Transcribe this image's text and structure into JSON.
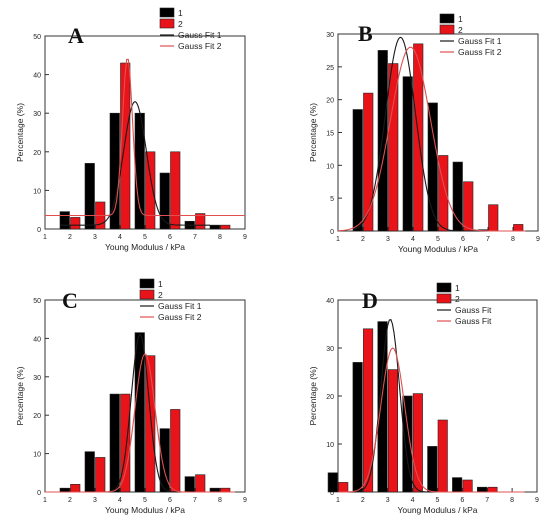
{
  "chart_data": [
    {
      "panel_label": "A",
      "type": "bar",
      "xlabel": "Young Modulus / kPa",
      "ylabel": "Percentage (%)",
      "xlim": [
        1,
        9
      ],
      "ylim": [
        0,
        50
      ],
      "xticks": [
        1,
        2,
        3,
        4,
        5,
        6,
        7,
        8,
        9
      ],
      "yticks": [
        0,
        10,
        20,
        30,
        40,
        50
      ],
      "legend_position": "top-right",
      "legend": [
        "1",
        "2",
        "Gauss Fit 1",
        "Gauss Fit 2"
      ],
      "series": [
        {
          "name": "1",
          "color": "#000000",
          "x": [
            2,
            3,
            4,
            5,
            6,
            7,
            8
          ],
          "values": [
            4.5,
            17,
            30,
            30,
            14.5,
            2,
            1
          ]
        },
        {
          "name": "2",
          "color": "#e8141a",
          "x": [
            2,
            3,
            4,
            5,
            6,
            7,
            8
          ],
          "values": [
            3,
            7,
            43,
            20,
            20,
            4,
            1
          ]
        }
      ],
      "fits": [
        {
          "name": "Gauss Fit 1",
          "color": "#1a1a1a",
          "y0": 1,
          "A": 32,
          "xc": 4.6,
          "w": 0.9,
          "xrange": [
            1.6,
            7.6
          ]
        },
        {
          "name": "Gauss Fit 2",
          "color": "#e05050",
          "y0": 3.5,
          "A": 41,
          "xc": 4.3,
          "w": 0.4,
          "xrange": [
            1.0,
            9.0
          ]
        }
      ]
    },
    {
      "panel_label": "B",
      "type": "bar",
      "xlabel": "Young Modulus / kPa",
      "ylabel": "Percentage (%)",
      "xlim": [
        1,
        9
      ],
      "ylim": [
        0,
        30
      ],
      "xticks": [
        1,
        2,
        3,
        4,
        5,
        6,
        7,
        8,
        9
      ],
      "yticks": [
        0,
        5,
        10,
        15,
        20,
        25,
        30
      ],
      "legend_position": "top-right",
      "legend": [
        "1",
        "2",
        "Gauss Fit 1",
        "Gauss Fit 2"
      ],
      "series": [
        {
          "name": "1",
          "color": "#000000",
          "x": [
            2,
            3,
            4,
            5,
            6,
            7,
            8
          ],
          "values": [
            18.5,
            27.5,
            23.5,
            19.5,
            10.5,
            0.2,
            0
          ]
        },
        {
          "name": "2",
          "color": "#e8141a",
          "x": [
            2,
            3,
            4,
            5,
            6,
            7,
            8
          ],
          "values": [
            21,
            25.5,
            28.5,
            11.5,
            7.5,
            4,
            1
          ]
        }
      ],
      "fits": [
        {
          "name": "Gauss Fit 1",
          "color": "#1a1a1a",
          "y0": 0,
          "A": 29.5,
          "xc": 3.5,
          "w": 1.2,
          "xrange": [
            1.6,
            7.8
          ]
        },
        {
          "name": "Gauss Fit 2",
          "color": "#e05050",
          "y0": 0,
          "A": 28,
          "xc": 3.9,
          "w": 1.6,
          "xrange": [
            1.0,
            8.5
          ]
        }
      ]
    },
    {
      "panel_label": "C",
      "type": "bar",
      "xlabel": "Young Modulus / kPa",
      "ylabel": "Percentage (%)",
      "xlim": [
        1,
        9
      ],
      "ylim": [
        0,
        50
      ],
      "xticks": [
        1,
        2,
        3,
        4,
        5,
        6,
        7,
        8,
        9
      ],
      "yticks": [
        0,
        10,
        20,
        30,
        40,
        50
      ],
      "legend_position": "top-left",
      "legend": [
        "1",
        "2",
        "Gauss Fit 1",
        "Gauss Fit 2"
      ],
      "series": [
        {
          "name": "1",
          "color": "#000000",
          "x": [
            2,
            3,
            4,
            5,
            6,
            7,
            8
          ],
          "values": [
            1,
            10.5,
            25.5,
            41.5,
            16.5,
            4,
            1
          ]
        },
        {
          "name": "2",
          "color": "#e8141a",
          "x": [
            2,
            3,
            4,
            5,
            6,
            7,
            8
          ],
          "values": [
            2,
            9,
            25.5,
            35.5,
            21.5,
            4.5,
            1
          ]
        }
      ],
      "fits": [
        {
          "name": "Gauss Fit 1",
          "color": "#1a1a1a",
          "y0": 0,
          "A": 41,
          "xc": 4.8,
          "w": 0.7,
          "xrange": [
            1.0,
            8.6
          ]
        },
        {
          "name": "Gauss Fit 2",
          "color": "#e05050",
          "y0": 0,
          "A": 36,
          "xc": 5.0,
          "w": 0.8,
          "xrange": [
            1.0,
            8.6
          ]
        }
      ]
    },
    {
      "panel_label": "D",
      "type": "bar",
      "xlabel": "Young Modulus / kPa",
      "ylabel": "Percentage (%)",
      "xlim": [
        1,
        9
      ],
      "ylim": [
        0,
        40
      ],
      "xticks": [
        1,
        2,
        3,
        4,
        5,
        6,
        7,
        8,
        9
      ],
      "yticks": [
        0,
        10,
        20,
        30,
        40
      ],
      "legend_position": "top-left",
      "legend": [
        "1",
        "2",
        "Gauss Fit",
        "Gauss Fit"
      ],
      "series": [
        {
          "name": "1",
          "color": "#000000",
          "x": [
            1,
            2,
            3,
            4,
            5,
            6,
            7
          ],
          "values": [
            4,
            27,
            35.5,
            20,
            9.5,
            3,
            1
          ]
        },
        {
          "name": "2",
          "color": "#e8141a",
          "x": [
            1,
            2,
            3,
            4,
            5,
            6,
            7
          ],
          "values": [
            2,
            34,
            25.5,
            20.5,
            15,
            2.5,
            1
          ]
        }
      ],
      "fits": [
        {
          "name": "Gauss Fit",
          "color": "#1a1a1a",
          "y0": 0,
          "A": 36,
          "xc": 3.1,
          "w": 0.75,
          "xrange": [
            1.0,
            8.5
          ]
        },
        {
          "name": "Gauss Fit",
          "color": "#e05050",
          "y0": 0,
          "A": 30,
          "xc": 3.2,
          "w": 0.95,
          "xrange": [
            1.0,
            8.5
          ]
        }
      ]
    }
  ]
}
